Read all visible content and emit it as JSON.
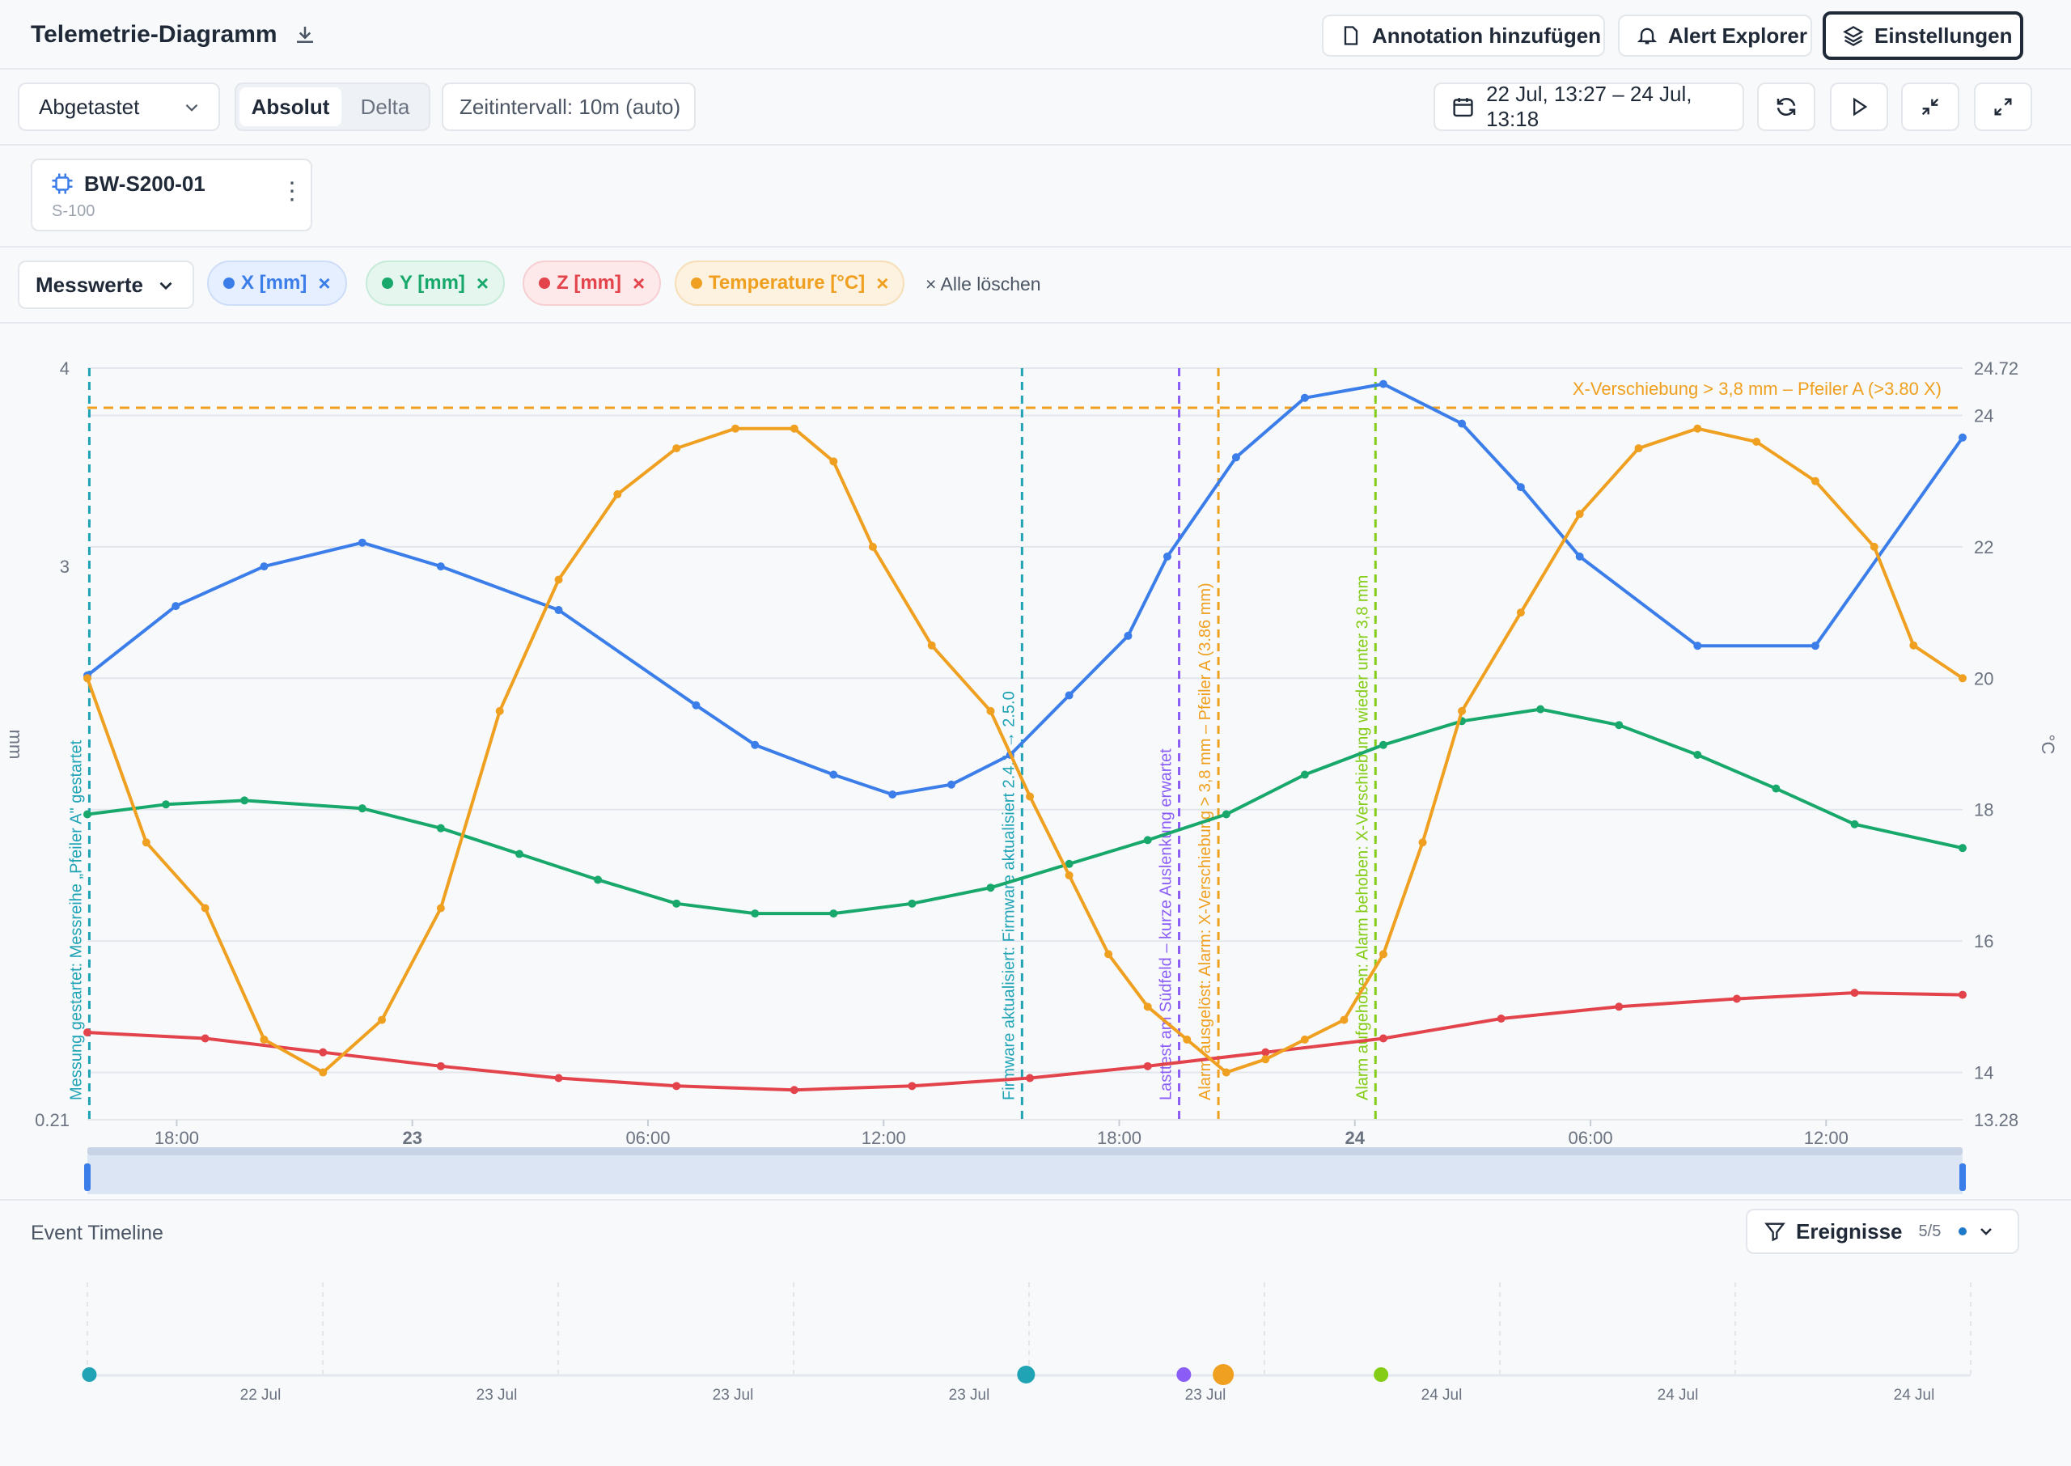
{
  "header": {
    "title": "Telemetrie-Diagramm",
    "annotation_button": "Annotation hinzufügen",
    "alert_button": "Alert Explorer",
    "settings_button": "Einstellungen"
  },
  "toolbar": {
    "mode_select": "Abgetastet",
    "toggle_absolute": "Absolut",
    "toggle_delta": "Delta",
    "interval": "Zeitintervall: 10m (auto)",
    "date_range": "22 Jul, 13:27 – 24 Jul, 13:18"
  },
  "device": {
    "name": "BW-S200-01",
    "model": "S-100"
  },
  "filters": {
    "dropdown": "Messwerte",
    "chips": [
      {
        "label": "X [mm]",
        "color": "#3b7de9"
      },
      {
        "label": "Y [mm]",
        "color": "#18a86b"
      },
      {
        "label": "Z [mm]",
        "color": "#e3434b"
      },
      {
        "label": "Temperature [°C]",
        "color": "#f0a020"
      }
    ],
    "clear_all": "× Alle löschen"
  },
  "chart_data": {
    "type": "line",
    "x_range": [
      "22 Jul 13:27",
      "24 Jul 13:18"
    ],
    "x_ticks": [
      "18:00",
      "23",
      "06:00",
      "12:00",
      "18:00",
      "24",
      "06:00",
      "12:00"
    ],
    "y_left": {
      "label": "mm",
      "min": 0.21,
      "max": 4,
      "ticks": [
        "4",
        "3",
        "0.21"
      ]
    },
    "y_right": {
      "label": "°C",
      "min": 13.28,
      "max": 24.72,
      "ticks": [
        "24.72",
        "24",
        "22",
        "20",
        "18",
        "16",
        "14",
        "13.28"
      ]
    },
    "series": [
      {
        "name": "X [mm]",
        "color": "#3b7de9",
        "axis": "left",
        "x_hours": [
          0,
          4.5,
          9,
          14,
          18,
          24,
          31,
          34,
          38,
          41,
          44,
          47,
          50,
          53,
          55,
          58.5,
          62,
          66,
          70,
          73,
          76,
          82,
          88,
          95.5
        ],
        "values": [
          2.45,
          2.8,
          3.0,
          3.12,
          3.0,
          2.78,
          2.3,
          2.1,
          1.95,
          1.85,
          1.9,
          2.05,
          2.35,
          2.65,
          3.05,
          3.55,
          3.85,
          3.92,
          3.72,
          3.4,
          3.05,
          2.6,
          2.6,
          3.65
        ]
      },
      {
        "name": "Y [mm]",
        "color": "#18a86b",
        "axis": "left",
        "x_hours": [
          0,
          4,
          8,
          14,
          18,
          22,
          26,
          30,
          34,
          38,
          42,
          46,
          50,
          54,
          58,
          62,
          66,
          70,
          74,
          78,
          82,
          86,
          90,
          95.5
        ],
        "values": [
          1.75,
          1.8,
          1.82,
          1.78,
          1.68,
          1.55,
          1.42,
          1.3,
          1.25,
          1.25,
          1.3,
          1.38,
          1.5,
          1.62,
          1.75,
          1.95,
          2.1,
          2.22,
          2.28,
          2.2,
          2.05,
          1.88,
          1.7,
          1.58
        ]
      },
      {
        "name": "Z [mm]",
        "color": "#e3434b",
        "axis": "left",
        "x_hours": [
          0,
          6,
          12,
          18,
          24,
          30,
          36,
          42,
          48,
          54,
          60,
          66,
          72,
          78,
          84,
          90,
          95.5
        ],
        "values": [
          0.65,
          0.62,
          0.55,
          0.48,
          0.42,
          0.38,
          0.36,
          0.38,
          0.42,
          0.48,
          0.55,
          0.62,
          0.72,
          0.78,
          0.82,
          0.85,
          0.84
        ]
      },
      {
        "name": "Temperature [°C]",
        "color": "#f0a020",
        "axis": "right",
        "x_hours": [
          0,
          3,
          6,
          9,
          12,
          15,
          18,
          21,
          24,
          27,
          30,
          33,
          36,
          38,
          40,
          43,
          46,
          48,
          50,
          52,
          54,
          56,
          58,
          60,
          62,
          64,
          66,
          68,
          70,
          73,
          76,
          79,
          82,
          85,
          88,
          91,
          93,
          95.5
        ],
        "values": [
          20,
          17.5,
          16.5,
          14.5,
          14,
          14.8,
          16.5,
          19.5,
          21.5,
          22.8,
          23.5,
          23.8,
          23.8,
          23.3,
          22,
          20.5,
          19.5,
          18.2,
          17,
          15.8,
          15,
          14.5,
          14,
          14.2,
          14.5,
          14.8,
          15.8,
          17.5,
          19.5,
          21,
          22.5,
          23.5,
          23.8,
          23.6,
          23,
          22,
          20.5,
          20
        ]
      }
    ],
    "threshold": {
      "label": "X-Verschiebung > 3,8 mm – Pfeiler A (>3.80 X)",
      "value": 3.8,
      "color": "#f0a020"
    },
    "events": [
      {
        "label": "Messung gestartet: Messreihe „Pfeiler A\" gestartet",
        "color": "#1fa3b5",
        "x_hour": 0.1
      },
      {
        "label": "Firmware aktualisiert: Firmware aktualisiert 2.4.1 → 2.5.0",
        "color": "#1fa3b5",
        "x_hour": 47.6
      },
      {
        "label": "Lasttest am Südfeld – kurze Auslenkung erwartet",
        "color": "#8b5cf6",
        "x_hour": 55.6
      },
      {
        "label": "Alarm ausgelöst: Alarm: X-Verschiebung > 3,8 mm – Pfeiler A (3.86 mm)",
        "color": "#f0a020",
        "x_hour": 57.6
      },
      {
        "label": "Alarm aufgehoben: Alarm behoben: X-Verschiebung wieder unter 3,8 mm",
        "color": "#84cc16",
        "x_hour": 65.6
      }
    ]
  },
  "timeline": {
    "title": "Event Timeline",
    "filter_label": "Ereignisse",
    "filter_count": "5/5",
    "dates": [
      "22 Jul",
      "23 Jul",
      "23 Jul",
      "23 Jul",
      "23 Jul",
      "24 Jul",
      "24 Jul",
      "24 Jul"
    ]
  }
}
